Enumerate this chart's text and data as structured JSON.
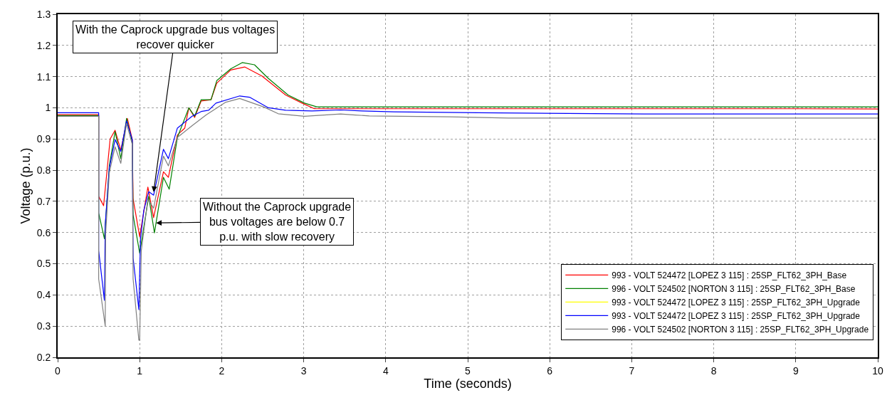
{
  "chart_data": {
    "type": "line",
    "xlabel": "Time (seconds)",
    "ylabel": "Voltage (p.u.)",
    "xlim": [
      0,
      10
    ],
    "ylim": [
      0.2,
      1.3
    ],
    "xticks": [
      0,
      1,
      2,
      3,
      4,
      5,
      6,
      7,
      8,
      9,
      10
    ],
    "yticks": [
      0.2,
      0.3,
      0.4,
      0.5,
      0.6,
      0.7,
      0.8,
      0.9,
      1,
      1.1,
      1.2,
      1.3
    ],
    "grid": true,
    "legend": "bottom right",
    "marker": "none",
    "line_style": "solid",
    "annotations": [
      {
        "text": "With the Caprock upgrade bus voltages recover quicker",
        "x": 1.17,
        "y": 0.73
      },
      {
        "text": "Without the Caprock upgrade bus voltages are below 0.7 p.u. with slow recovery",
        "x": 1.2,
        "y": 0.631
      }
    ],
    "series": [
      {
        "name": "993 - VOLT 524472 [LOPEZ 3 115] : 25SP_FLT62_3PH_Base",
        "color": "#ff0000",
        "x": [
          0,
          0.5,
          0.5,
          0.56,
          0.64,
          0.7,
          0.77,
          0.85,
          0.91,
          0.92,
          1.0,
          1.1,
          1.17,
          1.29,
          1.35,
          1.46,
          1.55,
          1.6,
          1.67,
          1.75,
          1.87,
          1.94,
          2.11,
          2.28,
          2.49,
          2.78,
          2.98,
          3.13,
          4,
          5,
          6,
          7,
          8,
          9,
          10
        ],
        "values": [
          0.978,
          0.978,
          0.716,
          0.686,
          0.9,
          0.928,
          0.864,
          0.966,
          0.898,
          0.708,
          0.587,
          0.746,
          0.648,
          0.795,
          0.777,
          0.913,
          0.935,
          1.0,
          0.969,
          1.022,
          1.026,
          1.079,
          1.121,
          1.131,
          1.102,
          1.041,
          1.015,
          0.997,
          0.997,
          0.997,
          0.997,
          0.997,
          0.997,
          0.997,
          0.996
        ]
      },
      {
        "name": "996 - VOLT 524502 [NORTON 3 115] : 25SP_FLT62_3PH_Base",
        "color": "#008000",
        "x": [
          0,
          0.5,
          0.5,
          0.57,
          0.63,
          0.7,
          0.77,
          0.84,
          0.91,
          0.92,
          1.0,
          1.11,
          1.18,
          1.29,
          1.36,
          1.46,
          1.6,
          1.67,
          1.75,
          1.87,
          1.94,
          2.11,
          2.25,
          2.4,
          2.57,
          2.81,
          3.01,
          3.16,
          4,
          5,
          6,
          7,
          8,
          9,
          10
        ],
        "values": [
          0.975,
          0.975,
          0.663,
          0.58,
          0.814,
          0.924,
          0.837,
          0.966,
          0.89,
          0.656,
          0.534,
          0.716,
          0.599,
          0.777,
          0.739,
          0.905,
          1.0,
          0.973,
          1.026,
          1.026,
          1.087,
          1.125,
          1.145,
          1.138,
          1.094,
          1.041,
          1.015,
          1.003,
          1.003,
          1.003,
          1.003,
          1.003,
          1.003,
          1.003,
          1.003
        ]
      },
      {
        "name": "993 - VOLT 524472 [LOPEZ 3 115] : 25SP_FLT62_3PH_Upgrade",
        "color": "#ffff00",
        "values": [
          null
        ]
      },
      {
        "name": "993 - VOLT 524472 [LOPEZ 3 115] : 25SP_FLT62_3PH_Upgrade",
        "color": "#0000ff",
        "x": [
          0,
          0.5,
          0.5,
          0.57,
          0.58,
          0.63,
          0.7,
          0.77,
          0.84,
          0.91,
          0.92,
          0.99,
          1.01,
          1.05,
          1.11,
          1.17,
          1.29,
          1.35,
          1.46,
          1.64,
          1.75,
          1.84,
          1.93,
          2.22,
          2.34,
          2.57,
          2.78,
          3.1,
          3.45,
          3.71,
          4.1,
          5.12,
          7.15,
          10
        ],
        "values": [
          0.984,
          0.984,
          0.542,
          0.383,
          0.625,
          0.807,
          0.898,
          0.86,
          0.958,
          0.898,
          0.519,
          0.353,
          0.58,
          0.671,
          0.731,
          0.72,
          0.867,
          0.837,
          0.935,
          0.973,
          0.988,
          0.992,
          1.015,
          1.038,
          1.034,
          1.0,
          0.992,
          0.99,
          0.993,
          0.99,
          0.987,
          0.984,
          0.98,
          0.98
        ]
      },
      {
        "name": "996 - VOLT 524502 [NORTON 3 115] : 25SP_FLT62_3PH_Upgrade",
        "color": "#808080",
        "x": [
          0,
          0.5,
          0.5,
          0.58,
          0.585,
          0.63,
          0.7,
          0.77,
          0.84,
          0.91,
          0.92,
          0.99,
          1.0,
          1.02,
          1.1,
          1.17,
          1.29,
          1.35,
          1.46,
          1.64,
          1.81,
          2.05,
          2.22,
          2.51,
          2.69,
          3.01,
          3.45,
          3.63,
          3.8,
          4.78,
          5.5,
          10
        ],
        "values": [
          0.973,
          0.973,
          0.451,
          0.3,
          0.595,
          0.792,
          0.875,
          0.822,
          0.95,
          0.882,
          0.451,
          0.255,
          0.255,
          0.542,
          0.708,
          0.678,
          0.845,
          0.814,
          0.905,
          0.943,
          0.977,
          1.018,
          1.03,
          1.003,
          0.981,
          0.973,
          0.98,
          0.977,
          0.974,
          0.971,
          0.967,
          0.967
        ]
      }
    ]
  }
}
